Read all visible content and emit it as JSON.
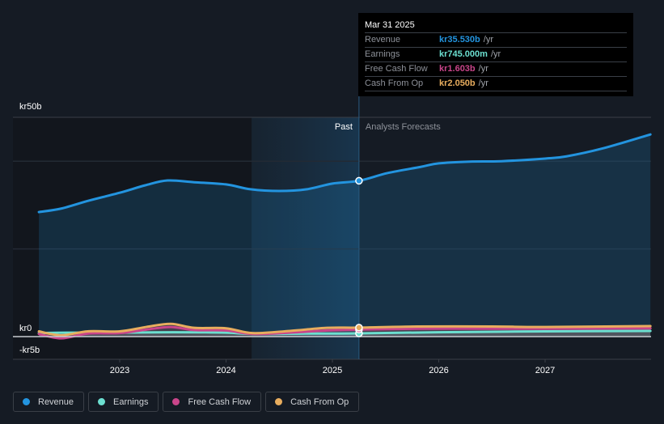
{
  "tooltip": {
    "date": "Mar 31 2025",
    "rows": [
      {
        "name": "Revenue",
        "value": "kr35.530b",
        "unit": "/yr",
        "color": "#2394df"
      },
      {
        "name": "Earnings",
        "value": "kr745.000m",
        "unit": "/yr",
        "color": "#6cdfd0"
      },
      {
        "name": "Free Cash Flow",
        "value": "kr1.603b",
        "unit": "/yr",
        "color": "#c9458a"
      },
      {
        "name": "Cash From Op",
        "value": "kr2.050b",
        "unit": "/yr",
        "color": "#e8ad5e"
      }
    ]
  },
  "legend": [
    {
      "label": "Revenue",
      "color": "#2394df"
    },
    {
      "label": "Earnings",
      "color": "#6cdfd0"
    },
    {
      "label": "Free Cash Flow",
      "color": "#c9458a"
    },
    {
      "label": "Cash From Op",
      "color": "#e8ad5e"
    }
  ],
  "chart_data": {
    "type": "line",
    "title": "",
    "xlabel": "",
    "ylabel": "",
    "y_unit": "kr billions",
    "ylim": [
      -5,
      50
    ],
    "xlim": [
      2022.0,
      2028.0
    ],
    "y_tick_labels": [
      {
        "value": 50,
        "label": "kr50b"
      },
      {
        "value": 0,
        "label": "kr0"
      },
      {
        "value": -5,
        "label": "-kr5b"
      }
    ],
    "x_tick_labels": [
      {
        "value": 2023,
        "label": "2023"
      },
      {
        "value": 2024,
        "label": "2024"
      },
      {
        "value": 2025,
        "label": "2025"
      },
      {
        "value": 2026,
        "label": "2026"
      },
      {
        "value": 2027,
        "label": "2027"
      }
    ],
    "gridlines_y": [
      20,
      40
    ],
    "past_label": "Past",
    "forecast_label": "Analysts Forecasts",
    "past_region_start": 2024.24,
    "divider_x": 2025.25,
    "series": [
      {
        "name": "Revenue",
        "color": "#2394df",
        "area": true,
        "points": [
          [
            2022.24,
            28.4
          ],
          [
            2022.45,
            29.2
          ],
          [
            2022.71,
            31.0
          ],
          [
            2023.0,
            32.8
          ],
          [
            2023.24,
            34.5
          ],
          [
            2023.45,
            35.6
          ],
          [
            2023.7,
            35.2
          ],
          [
            2024.0,
            34.7
          ],
          [
            2024.23,
            33.6
          ],
          [
            2024.5,
            33.2
          ],
          [
            2024.76,
            33.6
          ],
          [
            2025.0,
            34.9
          ],
          [
            2025.25,
            35.53
          ],
          [
            2025.52,
            37.3
          ],
          [
            2025.83,
            38.7
          ],
          [
            2026.0,
            39.5
          ],
          [
            2026.29,
            39.9
          ],
          [
            2026.59,
            40.0
          ],
          [
            2027.0,
            40.6
          ],
          [
            2027.2,
            41.1
          ],
          [
            2027.54,
            42.9
          ],
          [
            2027.99,
            46.1
          ]
        ]
      },
      {
        "name": "Earnings",
        "color": "#6cdfd0",
        "area": true,
        "points": [
          [
            2022.24,
            0.8
          ],
          [
            2022.5,
            0.9
          ],
          [
            2022.75,
            0.9
          ],
          [
            2023.0,
            0.9
          ],
          [
            2023.5,
            1.0
          ],
          [
            2024.0,
            0.9
          ],
          [
            2024.25,
            0.6
          ],
          [
            2024.75,
            0.7
          ],
          [
            2025.0,
            0.7
          ],
          [
            2025.25,
            0.745
          ],
          [
            2026.0,
            1.0
          ],
          [
            2027.0,
            1.2
          ],
          [
            2027.99,
            1.3
          ]
        ]
      },
      {
        "name": "Free Cash Flow",
        "color": "#c9458a",
        "area": true,
        "points": [
          [
            2022.24,
            0.6
          ],
          [
            2022.45,
            -0.4
          ],
          [
            2022.7,
            0.7
          ],
          [
            2023.0,
            0.8
          ],
          [
            2023.25,
            1.6
          ],
          [
            2023.48,
            2.2
          ],
          [
            2023.7,
            1.5
          ],
          [
            2024.0,
            1.4
          ],
          [
            2024.25,
            0.6
          ],
          [
            2024.6,
            0.9
          ],
          [
            2024.95,
            1.4
          ],
          [
            2025.25,
            1.603
          ],
          [
            2025.8,
            1.8
          ],
          [
            2026.5,
            1.8
          ],
          [
            2027.0,
            1.8
          ],
          [
            2027.99,
            1.9
          ]
        ]
      },
      {
        "name": "Cash From Op",
        "color": "#e8ad5e",
        "area": true,
        "points": [
          [
            2022.24,
            1.2
          ],
          [
            2022.45,
            0.3
          ],
          [
            2022.7,
            1.2
          ],
          [
            2023.0,
            1.2
          ],
          [
            2023.25,
            2.2
          ],
          [
            2023.48,
            2.9
          ],
          [
            2023.7,
            2.0
          ],
          [
            2024.0,
            1.9
          ],
          [
            2024.25,
            0.8
          ],
          [
            2024.6,
            1.3
          ],
          [
            2024.95,
            2.0
          ],
          [
            2025.25,
            2.05
          ],
          [
            2025.8,
            2.3
          ],
          [
            2026.5,
            2.3
          ],
          [
            2027.0,
            2.2
          ],
          [
            2027.99,
            2.4
          ]
        ]
      }
    ]
  }
}
